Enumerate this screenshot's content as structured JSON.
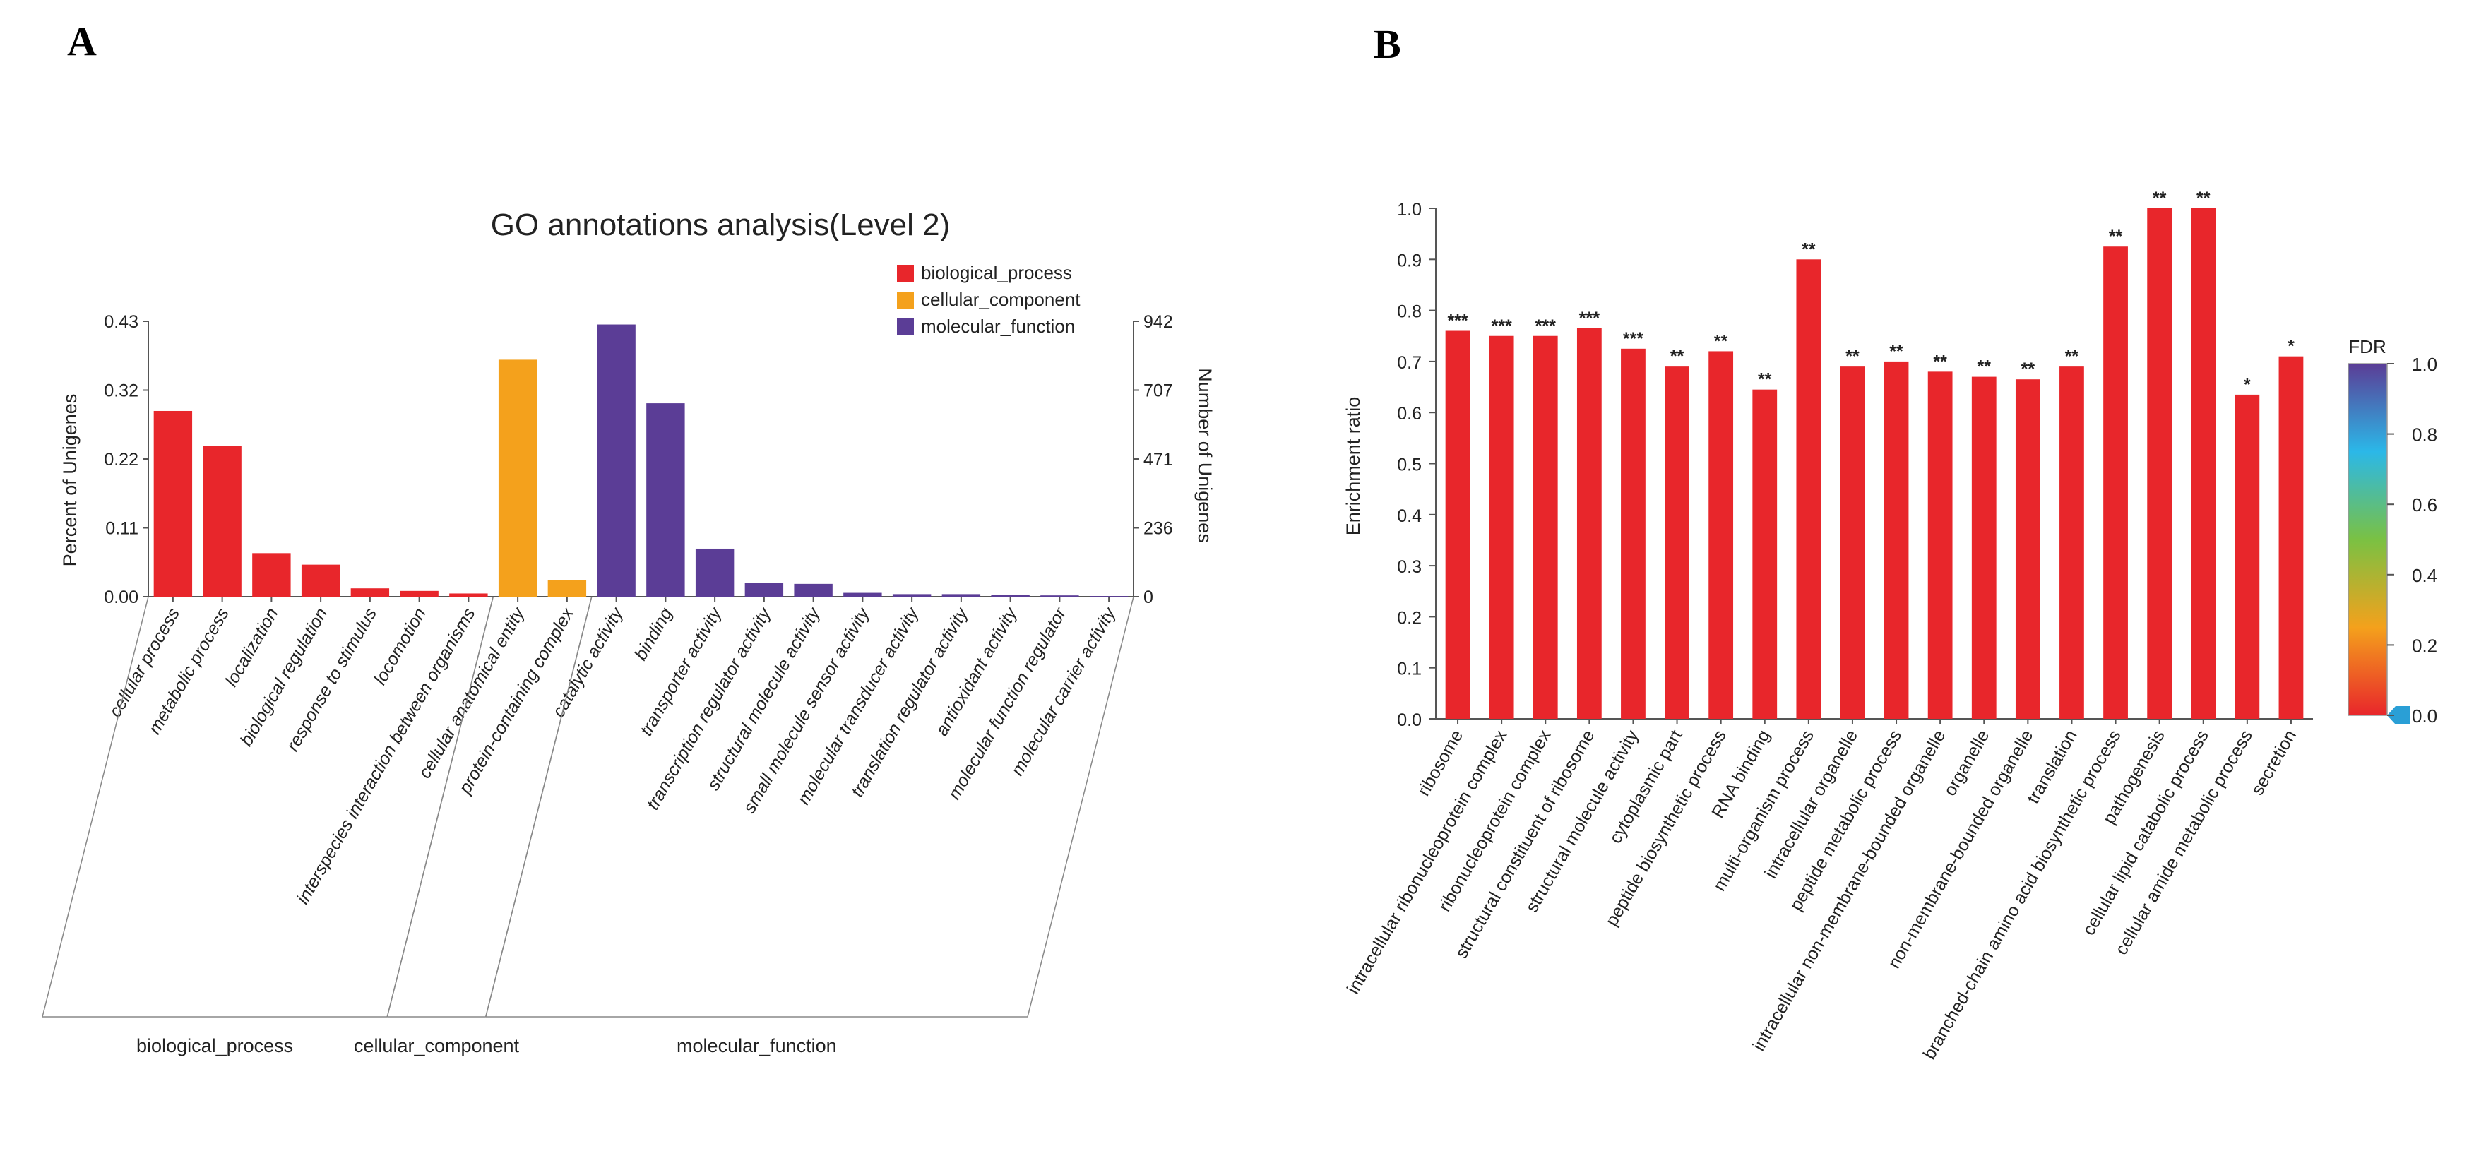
{
  "panels": {
    "a": "A",
    "b": "B"
  },
  "chart_data": [
    {
      "type": "bar",
      "title": "GO annotations analysis(Level 2)",
      "ylabel": "Percent of Unigenes",
      "y2label": "Number of Unigenes",
      "ylim": [
        0,
        0.43
      ],
      "yticks": [
        "0.00",
        "0.11",
        "0.22",
        "0.32",
        "0.43"
      ],
      "y2ticks": [
        "0",
        "236",
        "471",
        "707",
        "942"
      ],
      "legend_position": "top-right",
      "series": [
        {
          "name": "biological_process",
          "color": "#e8262b"
        },
        {
          "name": "cellular_component",
          "color": "#f4a11c"
        },
        {
          "name": "molecular_function",
          "color": "#5b3d96"
        }
      ],
      "categories": [
        "cellular process",
        "metabolic process",
        "localization",
        "biological regulation",
        "response to stimulus",
        "locomotion",
        "interspecies interaction between organisms",
        "cellular anatomical entity",
        "protein-containing complex",
        "catalytic activity",
        "binding",
        "transporter activity",
        "transcription regulator activity",
        "structural molecule activity",
        "small molecule sensor activity",
        "molecular transducer activity",
        "translation regulator activity",
        "antioxidant activity",
        "molecular function regulator",
        "molecular carrier activity"
      ],
      "values": [
        0.29,
        0.235,
        0.068,
        0.05,
        0.013,
        0.009,
        0.005,
        0.37,
        0.026,
        0.425,
        0.302,
        0.075,
        0.022,
        0.02,
        0.006,
        0.004,
        0.004,
        0.003,
        0.002,
        0.001
      ],
      "groups": [
        {
          "name": "biological_process",
          "start": 0,
          "end": 6
        },
        {
          "name": "cellular_component",
          "start": 7,
          "end": 8
        },
        {
          "name": "molecular_function",
          "start": 9,
          "end": 19
        }
      ]
    },
    {
      "type": "bar",
      "ylabel": "Enrichment ratio",
      "ylim": [
        0,
        1.0
      ],
      "yticks": [
        "0.0",
        "0.1",
        "0.2",
        "0.3",
        "0.4",
        "0.5",
        "0.6",
        "0.7",
        "0.8",
        "0.9",
        "1.0"
      ],
      "bar_color": "#e8262b",
      "categories": [
        "ribosome",
        "intracellular ribonucleoprotein complex",
        "ribonucleoprotein complex",
        "structural constituent of ribosome",
        "structural molecule activity",
        "cytoplasmic part",
        "peptide biosynthetic process",
        "RNA binding",
        "multi-organism process",
        "intracellular organelle",
        "peptide metabolic process",
        "intracellular non-membrane-bounded organelle",
        "organelle",
        "non-membrane-bounded organelle",
        "translation",
        "branched-chain amino acid biosynthetic process",
        "pathogenesis",
        "cellular lipid catabolic process",
        "cellular amide metabolic process",
        "secretion"
      ],
      "values": [
        0.76,
        0.75,
        0.75,
        0.765,
        0.725,
        0.69,
        0.72,
        0.645,
        0.9,
        0.69,
        0.7,
        0.68,
        0.67,
        0.665,
        0.69,
        0.925,
        1.0,
        1.0,
        0.635,
        0.71
      ],
      "significance": [
        "***",
        "***",
        "***",
        "***",
        "***",
        "**",
        "**",
        "**",
        "**",
        "**",
        "**",
        "**",
        "**",
        "**",
        "**",
        "**",
        "**",
        "**",
        "*",
        "*"
      ],
      "colorbar": {
        "label": "FDR",
        "ticks": [
          "0.0",
          "0.2",
          "0.4",
          "0.6",
          "0.8",
          "1.0"
        ],
        "colors": [
          "#e8262b",
          "#f4a11c",
          "#7ac143",
          "#2bb8e8",
          "#5b3d96"
        ]
      }
    }
  ]
}
